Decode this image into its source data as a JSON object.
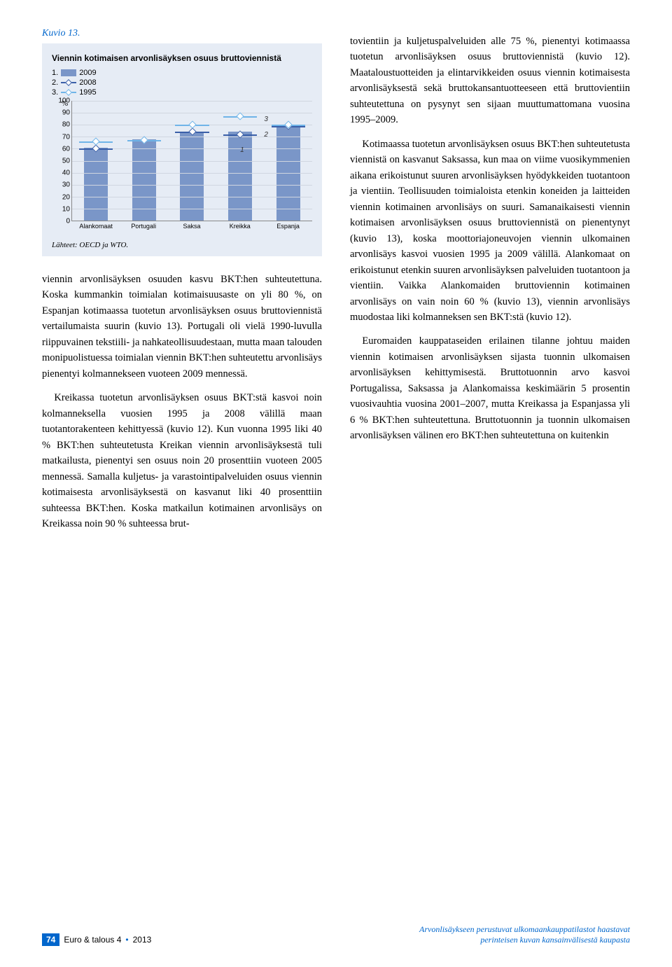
{
  "figure_label": "Kuvio 13.",
  "chart": {
    "type": "bar",
    "title": "Viennin kotimaisen arvonlisäyksen osuus bruttoviennistä",
    "legend_items": [
      {
        "num": "1.",
        "label": "2009",
        "kind": "bar",
        "color": "#7a96c8"
      },
      {
        "num": "2.",
        "label": "2008",
        "kind": "line",
        "color": "#3a5fa8"
      },
      {
        "num": "3.",
        "label": "1995",
        "kind": "line",
        "color": "#6fb4e8"
      }
    ],
    "y_label": "%",
    "categories": [
      "Alankomaat",
      "Portugali",
      "Saksa",
      "Kreikka",
      "Espanja"
    ],
    "series": {
      "s2009": [
        61,
        68,
        73,
        74,
        79
      ],
      "s2008": [
        60,
        67,
        74,
        72,
        79
      ],
      "s1995": [
        66,
        67,
        80,
        87,
        80
      ]
    },
    "ylim": [
      0,
      100
    ],
    "ytick_step": 10,
    "bar_color": "#7a96c8",
    "line2_color": "#3a5fa8",
    "line3_color": "#6fb4e8",
    "background": "#e6ecf5",
    "grid_color": "#d0d6e0",
    "annotations": [
      {
        "text": "1",
        "x": 3,
        "near": "s2009"
      },
      {
        "text": "2",
        "x": 3,
        "near": "s2008"
      },
      {
        "text": "3",
        "x": 3,
        "near": "s1995"
      }
    ],
    "source": "Lähteet: OECD ja WTO."
  },
  "body": {
    "col1": [
      "viennin arvonlisäyksen osuuden kasvu BKT:hen suhteutettuna. Koska kummankin toimialan kotimaisuusaste on yli 80 %, on Espanjan kotimaassa tuotetun arvonlisäyksen osuus bruttoviennistä vertailumaista suurin (kuvio 13). Portugali oli vielä 1990-luvulla riippuvainen tekstiili- ja nahkateollisuudestaan, mutta maan talouden monipuolistuessa toimialan viennin BKT:hen suhteutettu arvonlisäys pienentyi kolmannekseen vuoteen 2009 mennessä.",
      "Kreikassa tuotetun arvonlisäyksen osuus BKT:stä kasvoi noin kolmanneksella vuosien 1995 ja 2008 välillä maan tuotantorakenteen kehittyessä (kuvio 12). Kun vuonna 1995 liki 40 % BKT:hen suhteutetusta Kreikan viennin arvonlisäyksestä tuli matkailusta, pienentyi sen osuus noin 20 prosenttiin vuoteen 2005 mennessä. Samalla kuljetus- ja varastointipalveluiden osuus viennin kotimaisesta arvonlisäyksestä on kasvanut liki 40 prosenttiin suhteessa BKT:hen. Koska matkailun kotimainen arvonlisäys on Kreikassa noin 90 % suhteessa brut-"
    ],
    "col2": [
      "tovientiin ja kuljetuspalveluiden alle 75 %, pienentyi kotimaassa tuotetun arvonlisäyksen osuus bruttoviennistä (kuvio 12). Maataloustuotteiden ja elintarvikkeiden osuus viennin kotimaisesta arvonlisäyksestä sekä bruttokansantuotteeseen että bruttovientiin suhteutettuna on pysynyt sen sijaan muuttumattomana vuosina 1995–2009.",
      "Kotimaassa tuotetun arvonlisäyksen osuus BKT:hen suhteutetusta viennistä on kasvanut Saksassa, kun maa on viime vuosikymmenien aikana erikoistunut suuren arvonlisäyksen hyödykkeiden tuotantoon ja vientiin. Teollisuuden toimialoista etenkin koneiden ja laitteiden viennin kotimainen arvonlisäys on suuri. Samanaikaisesti viennin kotimaisen arvonlisäyksen osuus bruttoviennistä on pienentynyt (kuvio 13), koska moottoriajoneuvojen viennin ulkomainen arvonlisäys kasvoi vuosien 1995 ja 2009 välillä. Alankomaat on erikoistunut etenkin suuren arvonlisäyksen palveluiden tuotantoon ja vientiin. Vaikka Alankomaiden bruttoviennin kotimainen arvonlisäys on vain noin 60 % (kuvio 13), viennin arvonlisäys muodostaa liki kolmanneksen sen BKT:stä (kuvio 12).",
      "Euromaiden kauppataseiden erilainen tilanne johtuu maiden viennin kotimaisen arvonlisäyksen sijasta tuonnin ulkomaisen arvonlisäyksen kehittymisestä. Bruttotuonnin arvo kasvoi Portugalissa, Saksassa ja Alankomaissa keskimäärin 5 prosentin vuosivauhtia vuosina 2001–2007, mutta Kreikassa ja Espanjassa yli 6 % BKT:hen suhteutettuna. Bruttotuonnin ja tuonnin ulkomaisen arvonlisäyksen välinen ero BKT:hen suhteutettuna on kuitenkin"
    ]
  },
  "footer": {
    "page": "74",
    "journal": "Euro & talous 4",
    "sep": "•",
    "year": "2013",
    "right1": "Arvonlisäykseen perustuvat ulkomaankauppatilastot haastavat",
    "right2": "perinteisen kuvan kansainvälisestä kaupasta"
  }
}
